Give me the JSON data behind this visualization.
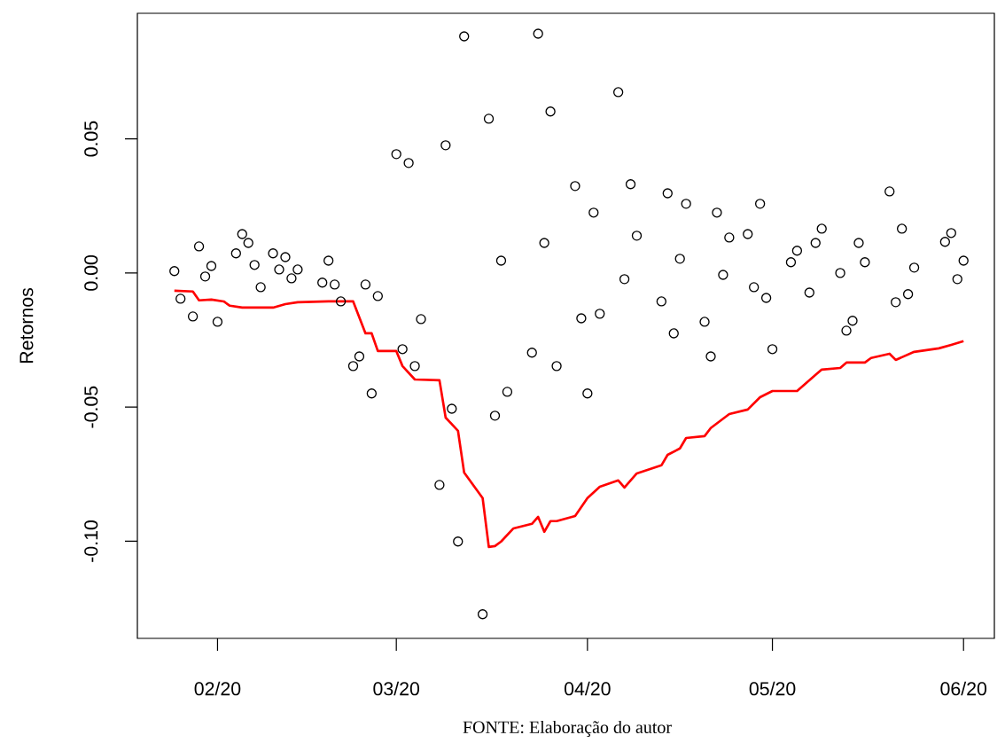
{
  "chart_data": {
    "type": "scatter",
    "ylabel": "Retornos",
    "annotations": [
      "FONTE: Elaboração do autor"
    ],
    "xlim": [
      "2020-01-19",
      "2020-06-06"
    ],
    "ylim": [
      -0.1362,
      0.0968
    ],
    "xticks": [
      {
        "value": "2020-02-01",
        "label": "02/20"
      },
      {
        "value": "2020-03-01",
        "label": "03/20"
      },
      {
        "value": "2020-04-01",
        "label": "04/20"
      },
      {
        "value": "2020-05-01",
        "label": "05/20"
      },
      {
        "value": "2020-06-01",
        "label": "06/20"
      }
    ],
    "yticks": [
      {
        "value": -0.1,
        "label": "-0.10"
      },
      {
        "value": -0.05,
        "label": "-0.05"
      },
      {
        "value": 0,
        "label": "0.00"
      },
      {
        "value": 0.05,
        "label": "0.05"
      }
    ],
    "grid": false,
    "marker": "circle",
    "series": [
      {
        "color": "#000000",
        "x": [
          "2020-01-25",
          "2020-01-26",
          "2020-01-28",
          "2020-01-29",
          "2020-01-30",
          "2020-01-31",
          "2020-02-01",
          "2020-02-04",
          "2020-02-05",
          "2020-02-06",
          "2020-02-07",
          "2020-02-08",
          "2020-02-10",
          "2020-02-11",
          "2020-02-12",
          "2020-02-13",
          "2020-02-14",
          "2020-02-18",
          "2020-02-19",
          "2020-02-20",
          "2020-02-21",
          "2020-02-23",
          "2020-02-24",
          "2020-02-25",
          "2020-02-26",
          "2020-02-27",
          "2020-03-01",
          "2020-03-02",
          "2020-03-03",
          "2020-03-04",
          "2020-03-05",
          "2020-03-08",
          "2020-03-09",
          "2020-03-10",
          "2020-03-11",
          "2020-03-12",
          "2020-03-15",
          "2020-03-16",
          "2020-03-17",
          "2020-03-18",
          "2020-03-19",
          "2020-03-23",
          "2020-03-24",
          "2020-03-25",
          "2020-03-26",
          "2020-03-27",
          "2020-03-30",
          "2020-03-31",
          "2020-04-01",
          "2020-04-02",
          "2020-04-03",
          "2020-04-06",
          "2020-04-07",
          "2020-04-08",
          "2020-04-09",
          "2020-04-13",
          "2020-04-14",
          "2020-04-15",
          "2020-04-16",
          "2020-04-17",
          "2020-04-20",
          "2020-04-21",
          "2020-04-22",
          "2020-04-23",
          "2020-04-24",
          "2020-04-27",
          "2020-04-28",
          "2020-04-29",
          "2020-04-30",
          "2020-05-01",
          "2020-05-04",
          "2020-05-05",
          "2020-05-07",
          "2020-05-08",
          "2020-05-09",
          "2020-05-12",
          "2020-05-13",
          "2020-05-14",
          "2020-05-15",
          "2020-05-16",
          "2020-05-20",
          "2020-05-21",
          "2020-05-22",
          "2020-05-23",
          "2020-05-24",
          "2020-05-29",
          "2020-05-30",
          "2020-05-31",
          "2020-06-01"
        ],
        "values": [
          0.0007,
          -0.0096,
          -0.0162,
          0.0099,
          -0.0013,
          0.0026,
          -0.0182,
          0.0073,
          0.0145,
          0.0112,
          0.003,
          -0.0053,
          0.0073,
          0.0013,
          0.0059,
          -0.002,
          0.0013,
          -0.0036,
          0.0046,
          -0.0043,
          -0.0106,
          -0.0347,
          -0.0311,
          -0.0043,
          -0.0449,
          -0.0086,
          0.0443,
          -0.0284,
          0.041,
          -0.0347,
          -0.0172,
          -0.079,
          0.0476,
          -0.0506,
          -0.1001,
          0.0882,
          -0.1272,
          0.0575,
          -0.0532,
          0.0046,
          -0.0443,
          -0.0297,
          0.0892,
          0.0112,
          0.0602,
          -0.0347,
          0.0324,
          -0.0169,
          -0.0449,
          0.0225,
          -0.0152,
          0.0674,
          -0.0023,
          0.0331,
          0.0139,
          -0.0106,
          0.0297,
          -0.0225,
          0.0053,
          0.0258,
          -0.0182,
          -0.0311,
          0.0225,
          -0.0007,
          0.0132,
          0.0145,
          -0.0053,
          0.0258,
          -0.0093,
          -0.0284,
          0.004,
          0.0083,
          -0.0073,
          0.0112,
          0.0165,
          0.0,
          -0.0215,
          -0.0178,
          0.0112,
          0.004,
          0.0304,
          -0.0109,
          0.0165,
          -0.0079,
          0.002,
          0.0116,
          0.0149,
          -0.0023,
          0.0046
        ]
      },
      {
        "type": "line",
        "marker": "none",
        "color": "#ff0000",
        "x": [
          "2020-01-25",
          "2020-01-28",
          "2020-01-29",
          "2020-01-31",
          "2020-02-02",
          "2020-02-03",
          "2020-02-05",
          "2020-02-10",
          "2020-02-12",
          "2020-02-14",
          "2020-02-19",
          "2020-02-23",
          "2020-02-25",
          "2020-02-26",
          "2020-02-27",
          "2020-03-01",
          "2020-03-02",
          "2020-03-04",
          "2020-03-08",
          "2020-03-09",
          "2020-03-11",
          "2020-03-12",
          "2020-03-15",
          "2020-03-16",
          "2020-03-17",
          "2020-03-18",
          "2020-03-20",
          "2020-03-23",
          "2020-03-24",
          "2020-03-25",
          "2020-03-26",
          "2020-03-27",
          "2020-03-30",
          "2020-04-01",
          "2020-04-03",
          "2020-04-06",
          "2020-04-07",
          "2020-04-09",
          "2020-04-13",
          "2020-04-14",
          "2020-04-16",
          "2020-04-17",
          "2020-04-20",
          "2020-04-21",
          "2020-04-24",
          "2020-04-27",
          "2020-04-29",
          "2020-05-01",
          "2020-05-05",
          "2020-05-08",
          "2020-05-09",
          "2020-05-12",
          "2020-05-13",
          "2020-05-16",
          "2020-05-17",
          "2020-05-20",
          "2020-05-21",
          "2020-05-24",
          "2020-05-28",
          "2020-05-30",
          "2020-06-01"
        ],
        "values": [
          -0.0066,
          -0.0069,
          -0.0102,
          -0.0099,
          -0.0106,
          -0.0122,
          -0.0129,
          -0.0129,
          -0.0116,
          -0.0109,
          -0.0106,
          -0.0106,
          -0.0225,
          -0.0225,
          -0.0291,
          -0.0291,
          -0.0347,
          -0.0397,
          -0.04,
          -0.0539,
          -0.0588,
          -0.0744,
          -0.0839,
          -0.1021,
          -0.1018,
          -0.1001,
          -0.0952,
          -0.0935,
          -0.0909,
          -0.0965,
          -0.0925,
          -0.0925,
          -0.0906,
          -0.0839,
          -0.0797,
          -0.0773,
          -0.08,
          -0.0747,
          -0.0717,
          -0.0678,
          -0.0654,
          -0.0615,
          -0.0608,
          -0.0578,
          -0.0526,
          -0.0509,
          -0.0463,
          -0.044,
          -0.044,
          -0.038,
          -0.036,
          -0.0354,
          -0.0334,
          -0.0334,
          -0.0317,
          -0.0301,
          -0.0324,
          -0.0294,
          -0.0281,
          -0.0268,
          -0.0254
        ]
      }
    ]
  }
}
